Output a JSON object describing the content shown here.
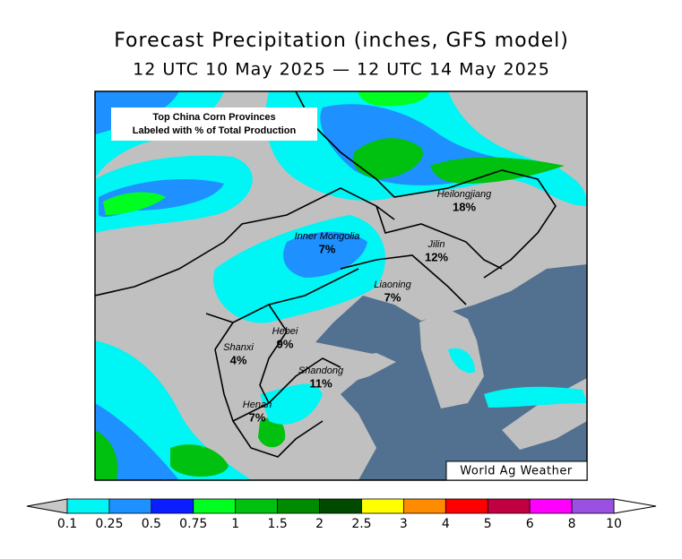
{
  "title": "Forecast Precipitation (inches, GFS model)",
  "subtitle": "12 UTC 10 May 2025 — 12 UTC 14 May 2025",
  "note": [
    "Top China Corn Provinces",
    "Labeled with % of Total Production"
  ],
  "provinces": [
    {
      "name": "Heilongjiang",
      "share": "18%"
    },
    {
      "name": "Inner Mongolia",
      "share": "7%"
    },
    {
      "name": "Jilin",
      "share": "12%"
    },
    {
      "name": "Liaoning",
      "share": "7%"
    },
    {
      "name": "Hebei",
      "share": "9%"
    },
    {
      "name": "Shanxi",
      "share": "4%"
    },
    {
      "name": "Shandong",
      "share": "11%"
    },
    {
      "name": "Henan",
      "share": "7%"
    }
  ],
  "credit": "World Ag Weather",
  "legend": {
    "labels": [
      "0.1",
      "0.25",
      "0.5",
      "0.75",
      "1",
      "1.5",
      "2",
      "2.5",
      "3",
      "4",
      "5",
      "6",
      "8",
      "10"
    ],
    "colors": [
      "#00f5f5",
      "#1e90ff",
      "#0a1eff",
      "#00ff20",
      "#00c010",
      "#008a00",
      "#004a00",
      "#ffff00",
      "#ff8c00",
      "#ff0000",
      "#c00040",
      "#ff00ff",
      "#9a50e0"
    ],
    "below_color": "#c8c8c8",
    "above_color": "#ffffff"
  }
}
